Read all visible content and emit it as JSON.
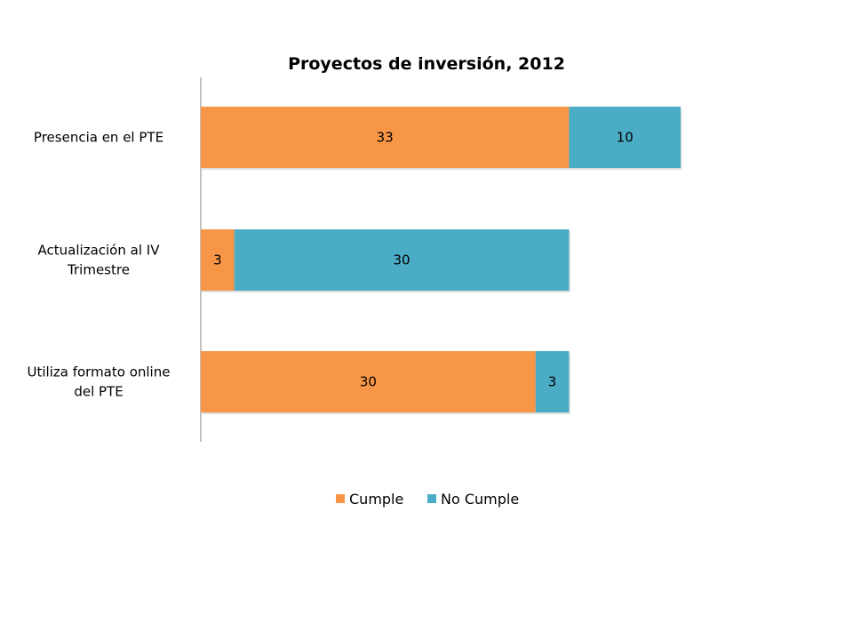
{
  "chart_data": {
    "type": "bar",
    "orientation": "horizontal",
    "stacked": true,
    "title": "Proyectos de inversión, 2012",
    "xlabel": "",
    "ylabel": "",
    "categories": [
      [
        "Presencia en el PTE"
      ],
      [
        "Actualización al IV",
        "Trimestre"
      ],
      [
        "Utiliza formato online",
        "del PTE"
      ]
    ],
    "series": [
      {
        "name": "Cumple",
        "color": "#F79646",
        "values": [
          33,
          3,
          30
        ]
      },
      {
        "name": "No Cumple",
        "color": "#4BACC6",
        "values": [
          10,
          30,
          3
        ]
      }
    ],
    "xlim": [
      0,
      60
    ],
    "axis_visible": false,
    "grid": false,
    "legend_position": "bottom",
    "data_labels": true
  }
}
